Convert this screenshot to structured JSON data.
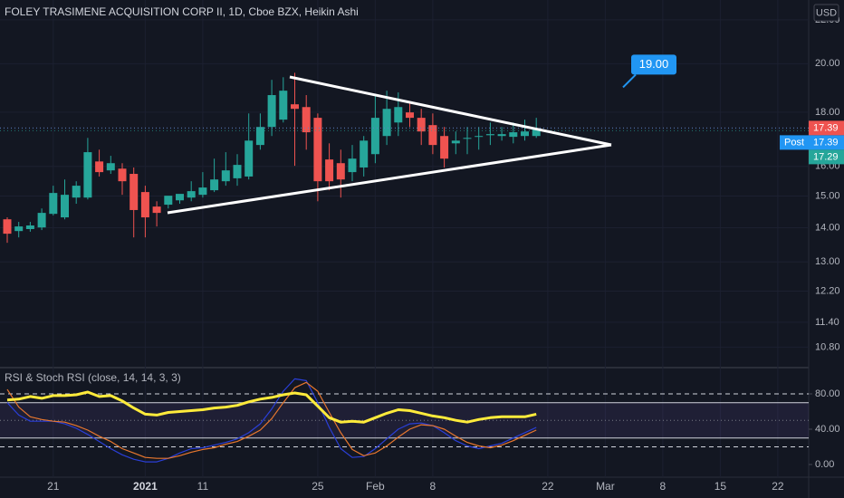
{
  "header": {
    "title": "FOLEY TRASIMENE ACQUISITION CORP II, 1D, Cboe BZX, Heikin Ashi",
    "currency": "USD"
  },
  "chart_data": [
    {
      "type": "candlestick",
      "categories": [
        null,
        null,
        null,
        null,
        "21",
        null,
        null,
        null,
        null,
        null,
        null,
        null,
        "2021",
        null,
        null,
        null,
        null,
        "11",
        null,
        null,
        null,
        null,
        null,
        null,
        null,
        null,
        null,
        "25",
        null,
        null,
        null,
        null,
        "Feb",
        null,
        null,
        null,
        null,
        "8",
        null,
        null,
        null,
        null,
        null,
        null,
        null,
        null,
        null,
        "22",
        null,
        null,
        null,
        null,
        "Mar",
        null,
        null,
        null,
        null,
        "8",
        null,
        null,
        null,
        null,
        "15",
        null,
        null,
        null,
        null,
        "22",
        null,
        null
      ],
      "open": [
        14.26,
        13.9,
        13.96,
        14.01,
        14.43,
        14.32,
        14.95,
        14.95,
        16.17,
        15.86,
        15.92,
        15.74,
        15.13,
        14.66,
        14.72,
        14.86,
        14.95,
        15.04,
        15.19,
        15.49,
        15.59,
        15.65,
        16.76,
        17.43,
        17.71,
        18.31,
        18.2,
        17.78,
        16.24,
        16.11,
        15.8,
        15.96,
        16.43,
        17.09,
        17.6,
        17.99,
        17.78,
        17.5,
        17.09,
        16.82,
        16.99,
        17.06,
        17.12,
        17.09,
        17.06,
        17.09,
        17.09,
        null,
        null,
        null,
        null,
        null,
        null,
        null,
        null,
        null,
        null,
        null,
        null,
        null,
        null,
        null,
        null,
        null,
        null,
        null,
        null,
        null,
        null,
        null
      ],
      "high": [
        14.32,
        14.18,
        14.18,
        14.6,
        15.34,
        15.55,
        15.49,
        17.02,
        16.59,
        16.37,
        16.11,
        15.96,
        15.34,
        14.83,
        14.89,
        14.98,
        15.49,
        15.8,
        16.27,
        16.5,
        16.43,
        17.95,
        17.95,
        19.31,
        19.42,
        19.61,
        18.68,
        17.95,
        16.82,
        16.59,
        16.76,
        17.09,
        18.68,
        18.86,
        18.79,
        18.42,
        18.13,
        17.95,
        17.43,
        17.26,
        17.43,
        17.43,
        17.6,
        17.43,
        17.6,
        17.71,
        17.78,
        null,
        null,
        null,
        null,
        null,
        null,
        null,
        null,
        null,
        null,
        null,
        null,
        null,
        null,
        null,
        null,
        null,
        null,
        null,
        null,
        null,
        null,
        null
      ],
      "low": [
        13.55,
        13.71,
        13.88,
        13.93,
        14.38,
        14.26,
        14.75,
        14.89,
        15.65,
        15.74,
        15.04,
        13.71,
        13.71,
        14.04,
        14.6,
        14.75,
        14.83,
        14.95,
        15.13,
        15.34,
        15.34,
        15.55,
        16.59,
        17.09,
        17.6,
        16.02,
        16.59,
        14.83,
        15.19,
        14.95,
        15.49,
        15.65,
        16.11,
        16.76,
        17.09,
        17.43,
        16.76,
        16.43,
        15.96,
        16.43,
        16.43,
        16.59,
        16.76,
        16.92,
        16.82,
        16.92,
        17.02,
        null,
        null,
        null,
        null,
        null,
        null,
        null,
        null,
        null,
        null,
        null,
        null,
        null,
        null,
        null,
        null,
        null,
        null,
        null,
        null,
        null,
        null,
        null
      ],
      "close": [
        13.82,
        14.04,
        14.07,
        14.46,
        15.1,
        15.04,
        15.34,
        16.5,
        15.8,
        16.11,
        15.49,
        14.55,
        14.32,
        14.46,
        15.01,
        15.07,
        15.16,
        15.28,
        15.55,
        15.86,
        16.05,
        16.92,
        17.43,
        18.68,
        18.86,
        18.13,
        17.23,
        15.49,
        15.49,
        15.55,
        16.27,
        16.92,
        17.78,
        18.13,
        18.2,
        17.78,
        17.26,
        16.76,
        16.27,
        16.92,
        17.02,
        17.09,
        17.16,
        17.16,
        17.23,
        17.26,
        17.33,
        null,
        null,
        null,
        null,
        null,
        null,
        null,
        null,
        null,
        null,
        null,
        null,
        null,
        null,
        null,
        null,
        null,
        null,
        null,
        null,
        null,
        null,
        null
      ],
      "up_color": "#26a69a",
      "down_color": "#ef5350",
      "log_scale": true,
      "ylim": [
        10.35,
        22.97
      ],
      "yticks": [
        {
          "value": 10.8,
          "label": "10.80"
        },
        {
          "value": 11.4,
          "label": "11.40"
        },
        {
          "value": 12.2,
          "label": "12.20"
        },
        {
          "value": 13,
          "label": "13.00"
        },
        {
          "value": 14,
          "label": "14.00"
        },
        {
          "value": 15,
          "label": "15.00"
        },
        {
          "value": 16,
          "label": "16.00"
        },
        {
          "value": 18,
          "label": "18.00"
        },
        {
          "value": 20,
          "label": "20.00"
        },
        {
          "value": 22,
          "label": "22.00"
        }
      ],
      "price_labels": [
        {
          "value": 17.39,
          "color": "#ef5350"
        },
        {
          "name": "Post",
          "value": 17.39,
          "color": "#2196f3"
        },
        {
          "value": 17.29,
          "color": "#26a69a"
        }
      ],
      "annotation": {
        "value": 19,
        "label": "19.00"
      }
    },
    {
      "type": "line",
      "title": "RSI & Stoch RSI (close, 14, 14, 3, 3)",
      "ylim": [
        -12.3,
        108.7
      ],
      "yticks": [
        {
          "value": 0,
          "label": "0.00"
        },
        {
          "value": 40,
          "label": "40.00"
        },
        {
          "value": 80,
          "label": "80.00"
        }
      ],
      "band": [
        30,
        70
      ],
      "dashed_levels": [
        80,
        20
      ],
      "mid_level": 50,
      "band_color": "#7e57c2",
      "series": [
        {
          "color": "#2a3fd8",
          "values": [
            70,
            56,
            49,
            49,
            49,
            46,
            41,
            34,
            26,
            18,
            11,
            6,
            3,
            3,
            7,
            13,
            18,
            19,
            22,
            25,
            29,
            36,
            46,
            63,
            83,
            97,
            95,
            70,
            42,
            18,
            8,
            9,
            18,
            29,
            40,
            46,
            47,
            44,
            36,
            27,
            21,
            18,
            21,
            24,
            30,
            36,
            42
          ]
        },
        {
          "color": "#e8772e",
          "values": [
            85,
            65,
            54,
            51,
            49,
            48,
            44,
            39,
            32,
            26,
            18,
            13,
            8,
            7,
            7,
            10,
            14,
            17,
            19,
            23,
            26,
            32,
            39,
            52,
            70,
            87,
            93,
            83,
            59,
            36,
            17,
            10,
            13,
            21,
            31,
            40,
            45,
            44,
            40,
            32,
            25,
            21,
            19,
            22,
            27,
            33,
            39
          ]
        },
        {
          "color": "#ffeb3b",
          "values": [
            73,
            74,
            77,
            75,
            78,
            78,
            79,
            82,
            77,
            78,
            72,
            64,
            57,
            56,
            59,
            60,
            61,
            62,
            64,
            65,
            67,
            71,
            74,
            76,
            79,
            81,
            79,
            66,
            53,
            48,
            49,
            48,
            53,
            58,
            62,
            61,
            58,
            55,
            53,
            50,
            48,
            51,
            53,
            54,
            54,
            54,
            57
          ]
        }
      ]
    }
  ]
}
